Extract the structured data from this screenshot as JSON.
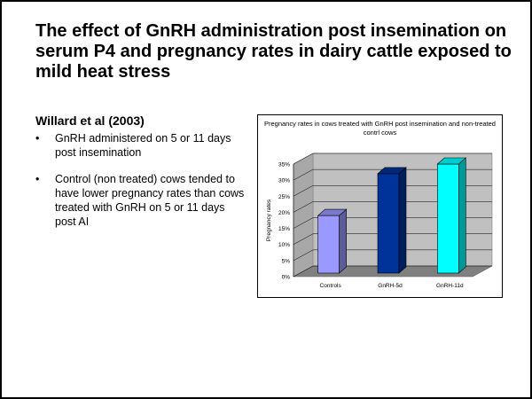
{
  "slide": {
    "title": "The effect of GnRH administration post insemination on serum P4 and pregnancy rates in dairy cattle exposed to mild heat stress",
    "subhead": "Willard et al (2003)",
    "bullets": [
      {
        "marker": "•",
        "text": "GnRH administered on 5 or 11 days post insemination"
      },
      {
        "marker": "•",
        "text": "Control (non treated) cows tended to have lower pregnancy rates than cows treated with GnRH on 5 or 11 days post AI"
      }
    ]
  },
  "chart_data": {
    "type": "bar",
    "title": "Pregnancy rates in cows treated with GnRH post insemination and non-treated contrl cows",
    "xlabel": "",
    "ylabel": "Pregnancy rates",
    "categories": [
      "Controls",
      "GnRH-5d",
      "GnRH-11d"
    ],
    "values": [
      19,
      32,
      35
    ],
    "ylim": [
      0,
      35
    ],
    "yticks": [
      "0%",
      "5%",
      "10%",
      "15%",
      "20%",
      "25%",
      "30%",
      "35%"
    ],
    "colors": [
      "#9999ff",
      "#003399",
      "#00ffff"
    ],
    "grid": true,
    "legend": "none"
  }
}
